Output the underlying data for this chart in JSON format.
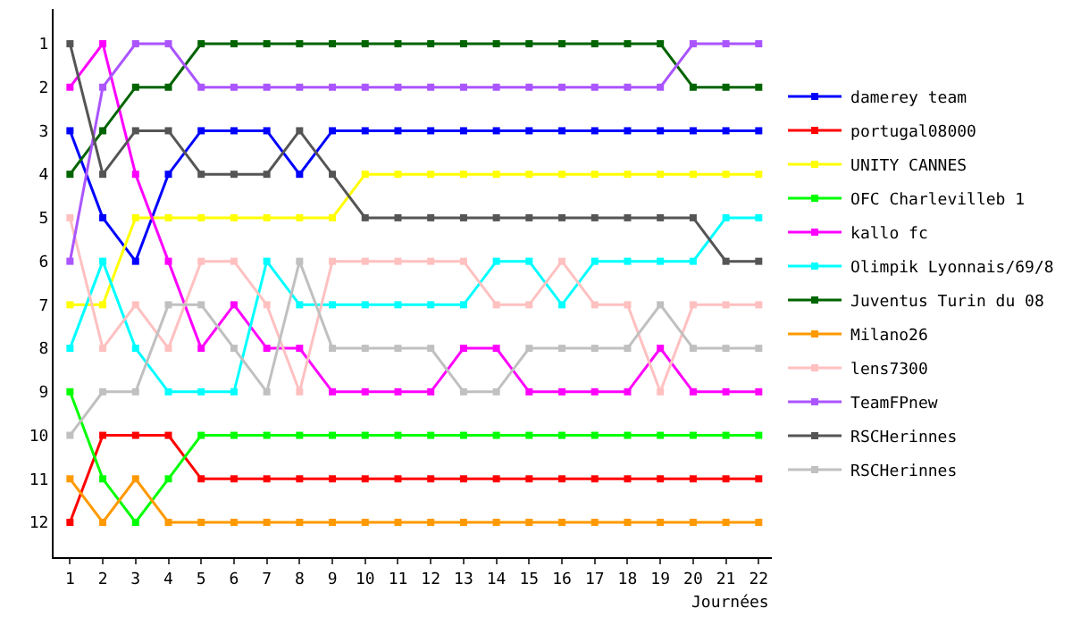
{
  "chart_data": {
    "type": "line",
    "xlabel": "Journées",
    "x": [
      1,
      2,
      3,
      4,
      5,
      6,
      7,
      8,
      9,
      10,
      11,
      12,
      13,
      14,
      15,
      16,
      17,
      18,
      19,
      20,
      21,
      22
    ],
    "xlim": [
      0.5,
      22.4
    ],
    "xticks": [
      1,
      2,
      3,
      4,
      5,
      6,
      7,
      8,
      9,
      10,
      11,
      12,
      13,
      14,
      15,
      16,
      17,
      18,
      19,
      20,
      21,
      22
    ],
    "ylim": [
      12.8,
      0.2
    ],
    "yticks": [
      1,
      2,
      3,
      4,
      5,
      6,
      7,
      8,
      9,
      10,
      11,
      12
    ],
    "grid": false,
    "legend": "right",
    "marker": "square",
    "line_style": "solid",
    "series": [
      {
        "name": "damerey team",
        "color": "#0000ff",
        "values": [
          3,
          5,
          6,
          4,
          3,
          3,
          3,
          4,
          3,
          3,
          3,
          3,
          3,
          3,
          3,
          3,
          3,
          3,
          3,
          3,
          3,
          3
        ]
      },
      {
        "name": "portugal08000",
        "color": "#ff0000",
        "values": [
          12,
          10,
          10,
          10,
          11,
          11,
          11,
          11,
          11,
          11,
          11,
          11,
          11,
          11,
          11,
          11,
          11,
          11,
          11,
          11,
          11,
          11
        ]
      },
      {
        "name": "UNITY CANNES",
        "color": "#ffff00",
        "values": [
          7,
          7,
          5,
          5,
          5,
          5,
          5,
          5,
          5,
          4,
          4,
          4,
          4,
          4,
          4,
          4,
          4,
          4,
          4,
          4,
          4,
          4
        ]
      },
      {
        "name": "OFC Charlevilleb 1",
        "color": "#00ff00",
        "values": [
          9,
          11,
          12,
          11,
          10,
          10,
          10,
          10,
          10,
          10,
          10,
          10,
          10,
          10,
          10,
          10,
          10,
          10,
          10,
          10,
          10,
          10
        ]
      },
      {
        "name": "kallo fc",
        "color": "#ff00ff",
        "values": [
          2,
          1,
          4,
          6,
          8,
          7,
          8,
          8,
          9,
          9,
          9,
          9,
          8,
          8,
          9,
          9,
          9,
          9,
          8,
          9,
          9,
          9
        ]
      },
      {
        "name": "Olimpik Lyonnais/69/8",
        "color": "#00ffff",
        "values": [
          8,
          6,
          8,
          9,
          9,
          9,
          6,
          7,
          7,
          7,
          7,
          7,
          7,
          6,
          6,
          7,
          6,
          6,
          6,
          6,
          5,
          5
        ]
      },
      {
        "name": "Juventus Turin du 08",
        "color": "#006400",
        "values": [
          4,
          3,
          2,
          2,
          1,
          1,
          1,
          1,
          1,
          1,
          1,
          1,
          1,
          1,
          1,
          1,
          1,
          1,
          1,
          2,
          2,
          2
        ]
      },
      {
        "name": "Milano26",
        "color": "#ff9900",
        "values": [
          11,
          12,
          11,
          12,
          12,
          12,
          12,
          12,
          12,
          12,
          12,
          12,
          12,
          12,
          12,
          12,
          12,
          12,
          12,
          12,
          12,
          12
        ]
      },
      {
        "name": "lens7300",
        "color": "#ffc0c0",
        "values": [
          5,
          8,
          7,
          8,
          6,
          6,
          7,
          9,
          6,
          6,
          6,
          6,
          6,
          7,
          7,
          6,
          7,
          7,
          9,
          7,
          7,
          7
        ]
      },
      {
        "name": "TeamFPnew",
        "color": "#aa55ff",
        "values": [
          6,
          2,
          1,
          1,
          2,
          2,
          2,
          2,
          2,
          2,
          2,
          2,
          2,
          2,
          2,
          2,
          2,
          2,
          2,
          1,
          1,
          1
        ]
      },
      {
        "name": "RSCHerinnes",
        "color": "#555555",
        "values": [
          1,
          4,
          3,
          3,
          4,
          4,
          4,
          3,
          4,
          5,
          5,
          5,
          5,
          5,
          5,
          5,
          5,
          5,
          5,
          5,
          6,
          6
        ]
      },
      {
        "name": "RSCHerinnes",
        "color": "#c0c0c0",
        "values": [
          10,
          9,
          9,
          7,
          7,
          8,
          9,
          6,
          8,
          8,
          8,
          8,
          9,
          9,
          8,
          8,
          8,
          8,
          7,
          8,
          8,
          8
        ]
      }
    ]
  }
}
